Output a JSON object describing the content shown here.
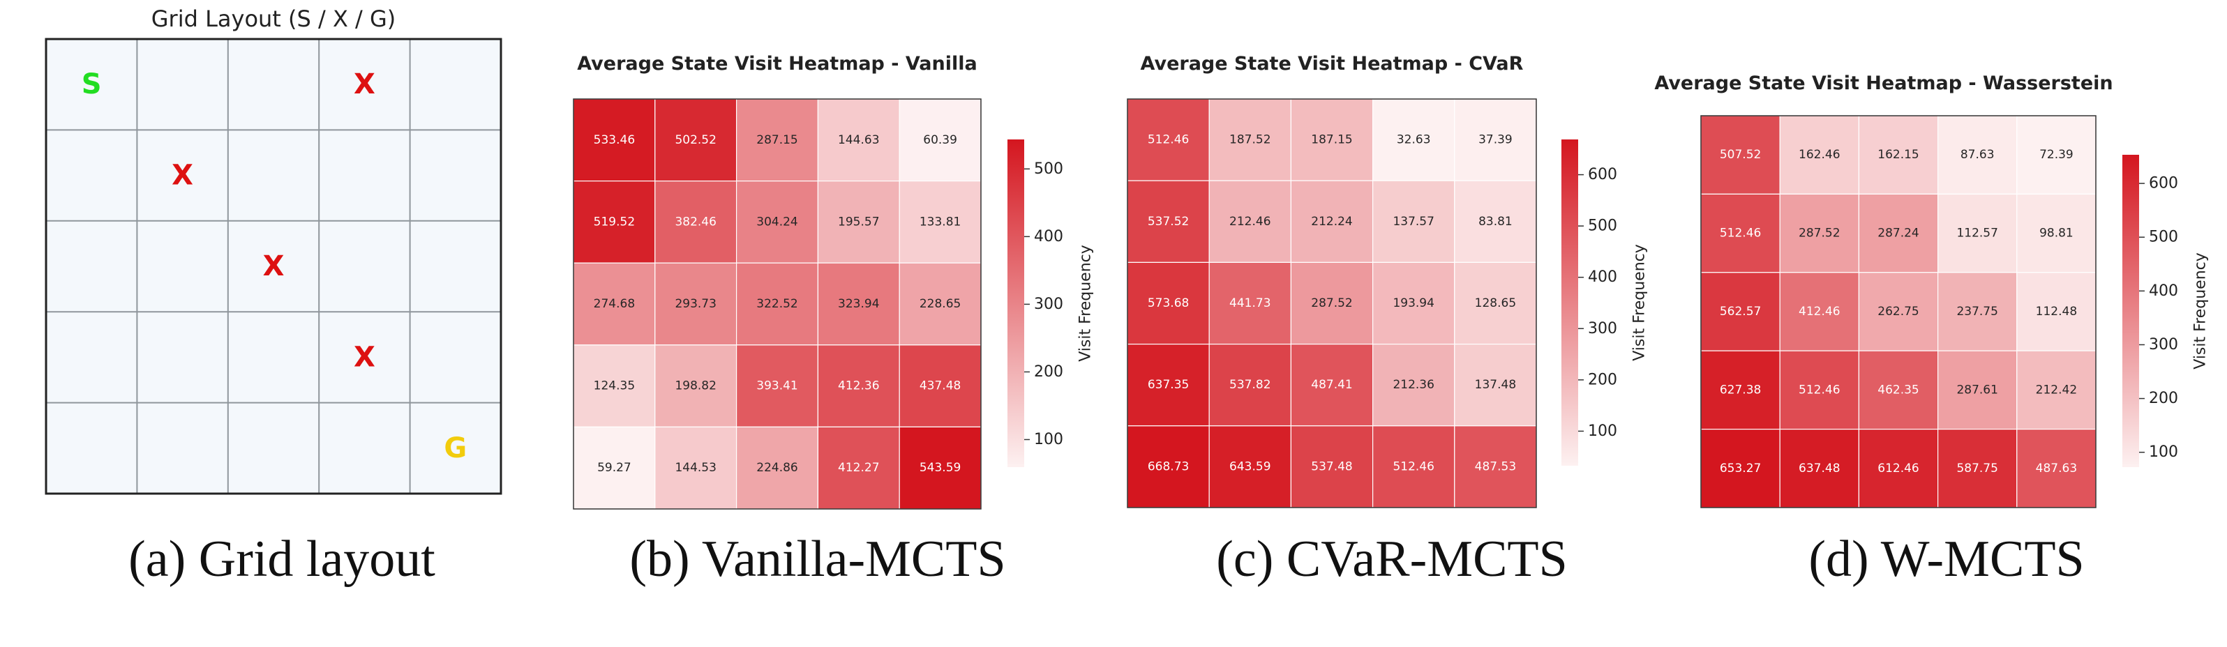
{
  "figure": {
    "captions": [
      "(a) Grid layout",
      "(b) Vanilla-MCTS",
      "(c) CVaR-MCTS",
      "(d) W-MCTS"
    ]
  },
  "colors": {
    "start": "#22dd22",
    "obstacle": "#dd1111",
    "goal": "#f2cc0c",
    "grid_bg": "#f4f8fc",
    "grid_line": "#8f969c",
    "heat_low": "#fdf1f1",
    "heat_high": "#d4161f"
  },
  "chart_data": [
    {
      "type": "table",
      "title": "Grid Layout (S / X / G)",
      "rows": 5,
      "cols": 5,
      "cells": [
        [
          "S",
          "",
          "",
          "X",
          ""
        ],
        [
          "",
          "X",
          "",
          "",
          ""
        ],
        [
          "",
          "",
          "X",
          "",
          ""
        ],
        [
          "",
          "",
          "",
          "X",
          ""
        ],
        [
          "",
          "",
          "",
          "",
          "G"
        ]
      ]
    },
    {
      "type": "heatmap",
      "title": "Average State Visit Heatmap - Vanilla",
      "colorbar_label": "Visit Frequency",
      "colorbar_ticks": [
        100,
        200,
        300,
        400,
        500
      ],
      "vmin": 59.27,
      "vmax": 543.59,
      "values": [
        [
          533.46,
          502.52,
          287.15,
          144.63,
          60.39
        ],
        [
          519.52,
          382.46,
          304.24,
          195.57,
          133.81
        ],
        [
          274.68,
          293.73,
          322.52,
          323.94,
          228.65
        ],
        [
          124.35,
          198.82,
          393.41,
          412.36,
          437.48
        ],
        [
          59.27,
          144.53,
          224.86,
          412.27,
          543.59
        ]
      ]
    },
    {
      "type": "heatmap",
      "title": "Average State Visit Heatmap - CVaR",
      "colorbar_label": "Visit Frequency",
      "colorbar_ticks": [
        100,
        200,
        300,
        400,
        500,
        600
      ],
      "vmin": 32.63,
      "vmax": 668.73,
      "values": [
        [
          512.46,
          187.52,
          187.15,
          32.63,
          37.39
        ],
        [
          537.52,
          212.46,
          212.24,
          137.57,
          83.81
        ],
        [
          573.68,
          441.73,
          287.52,
          193.94,
          128.65
        ],
        [
          637.35,
          537.82,
          487.41,
          212.36,
          137.48
        ],
        [
          668.73,
          643.59,
          537.48,
          512.46,
          487.53
        ]
      ]
    },
    {
      "type": "heatmap",
      "title": "Average State Visit Heatmap - Wasserstein",
      "colorbar_label": "Visit Frequency",
      "colorbar_ticks": [
        100,
        200,
        300,
        400,
        500,
        600
      ],
      "vmin": 72.39,
      "vmax": 653.27,
      "values": [
        [
          507.52,
          162.46,
          162.15,
          87.63,
          72.39
        ],
        [
          512.46,
          287.52,
          287.24,
          112.57,
          98.81
        ],
        [
          562.57,
          412.46,
          262.75,
          237.75,
          112.48
        ],
        [
          627.38,
          512.46,
          462.35,
          287.61,
          212.42
        ],
        [
          653.27,
          637.48,
          612.46,
          587.75,
          487.63
        ]
      ]
    }
  ]
}
